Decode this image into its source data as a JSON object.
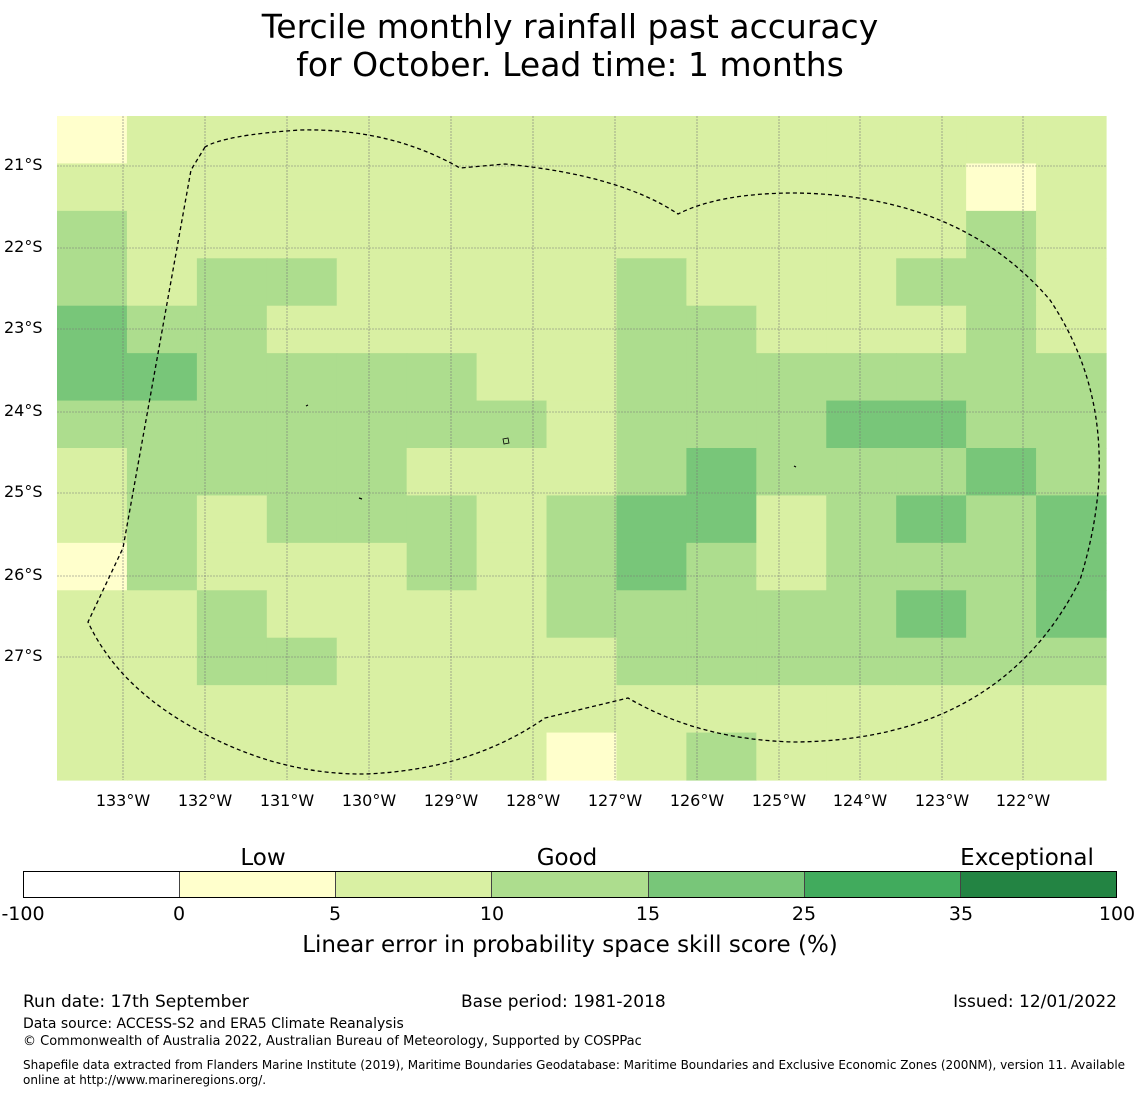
{
  "title": {
    "line1": "Tercile monthly rainfall past accuracy",
    "line2": "for October. Lead time: 1 months"
  },
  "map": {
    "lat_ticks": [
      "21°S",
      "22°S",
      "23°S",
      "24°S",
      "25°S",
      "26°S",
      "27°S"
    ],
    "lon_ticks": [
      "133°W",
      "132°W",
      "131°W",
      "130°W",
      "129°W",
      "128°W",
      "127°W",
      "126°W",
      "125°W",
      "124°W",
      "123°W",
      "122°W"
    ],
    "grid_columns": 15,
    "grid_rows": 14,
    "category_colors": {
      "0": "#ffffcc",
      "1": "#d9f0a3",
      "2": "#addd8e",
      "3": "#78c679"
    },
    "grid_categories": [
      [
        0,
        1,
        1,
        1,
        1,
        1,
        1,
        1,
        1,
        1,
        1,
        1,
        1,
        1,
        1
      ],
      [
        1,
        1,
        1,
        1,
        1,
        1,
        1,
        1,
        1,
        1,
        1,
        1,
        1,
        0,
        1
      ],
      [
        2,
        1,
        1,
        1,
        1,
        1,
        1,
        1,
        1,
        1,
        1,
        1,
        1,
        2,
        1
      ],
      [
        2,
        1,
        2,
        2,
        1,
        1,
        1,
        1,
        2,
        1,
        1,
        1,
        2,
        2,
        1
      ],
      [
        3,
        2,
        2,
        1,
        1,
        1,
        1,
        1,
        2,
        2,
        1,
        1,
        1,
        2,
        1
      ],
      [
        3,
        3,
        2,
        2,
        2,
        2,
        1,
        1,
        2,
        2,
        2,
        2,
        2,
        2,
        2
      ],
      [
        2,
        2,
        2,
        2,
        2,
        2,
        2,
        1,
        2,
        2,
        2,
        3,
        3,
        2,
        2
      ],
      [
        1,
        2,
        2,
        2,
        2,
        1,
        1,
        1,
        2,
        3,
        2,
        2,
        2,
        3,
        2
      ],
      [
        1,
        2,
        1,
        2,
        2,
        2,
        1,
        2,
        3,
        3,
        1,
        2,
        3,
        2,
        3
      ],
      [
        0,
        2,
        1,
        1,
        1,
        2,
        1,
        2,
        3,
        2,
        1,
        2,
        2,
        2,
        3
      ],
      [
        1,
        1,
        2,
        1,
        1,
        1,
        1,
        2,
        2,
        2,
        2,
        2,
        3,
        2,
        3
      ],
      [
        1,
        1,
        2,
        2,
        1,
        1,
        1,
        1,
        2,
        2,
        2,
        2,
        2,
        2,
        2
      ],
      [
        1,
        1,
        1,
        1,
        1,
        1,
        1,
        1,
        1,
        1,
        1,
        1,
        1,
        1,
        1
      ],
      [
        1,
        1,
        1,
        1,
        1,
        1,
        1,
        0,
        1,
        2,
        1,
        1,
        1,
        1,
        1
      ]
    ]
  },
  "colorbar": {
    "segment_colors": [
      "#ffffff",
      "#ffffcc",
      "#d9f0a3",
      "#addd8e",
      "#78c679",
      "#41ab5d",
      "#238443"
    ],
    "ticks": [
      "-100",
      "0",
      "5",
      "10",
      "15",
      "25",
      "35",
      "100"
    ],
    "categories": [
      "Low",
      "Good",
      "Exceptional"
    ],
    "label": "Linear error in probability space skill score (%)"
  },
  "footer": {
    "run_date": "Run date: 17th September",
    "base_period": "Base period: 1981-2018",
    "issued": "Issued: 12/01/2022",
    "data_source": "Data source: ACCESS-S2 and ERA5 Climate Reanalysis",
    "copyright": "© Commonwealth of Australia 2022, Australian Bureau of Meteorology, Supported by COSPPac",
    "shapefile": "Shapefile data extracted from Flanders Marine Institute (2019), Maritime Boundaries Geodatabase: Maritime Boundaries and Exclusive Economic Zones (200NM), version 11. Available online at http://www.marineregions.org/."
  }
}
